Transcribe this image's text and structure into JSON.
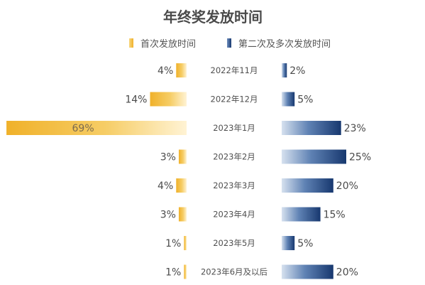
{
  "chart_data": {
    "type": "bar",
    "title": "年终奖发放时间",
    "categories": [
      "2022年11月",
      "2022年12月",
      "2023年1月",
      "2023年2月",
      "2023年3月",
      "2023年4月",
      "2023年5月",
      "2023年6月及以后"
    ],
    "series": [
      {
        "name": "首次发放时间",
        "values": [
          4,
          14,
          69,
          3,
          4,
          3,
          1,
          1
        ],
        "labels": [
          "4%",
          "14%",
          "69%",
          "3%",
          "4%",
          "3%",
          "1%",
          "1%"
        ],
        "color": "#f2b531"
      },
      {
        "name": "第二次及多次发放时间",
        "values": [
          2,
          5,
          23,
          25,
          20,
          15,
          5,
          20
        ],
        "labels": [
          "2%",
          "5%",
          "23%",
          "25%",
          "20%",
          "15%",
          "5%",
          "20%"
        ],
        "color": "#1d3f7a"
      }
    ],
    "orientation": "horizontal-diverging",
    "legend_position": "top",
    "grid": false
  }
}
